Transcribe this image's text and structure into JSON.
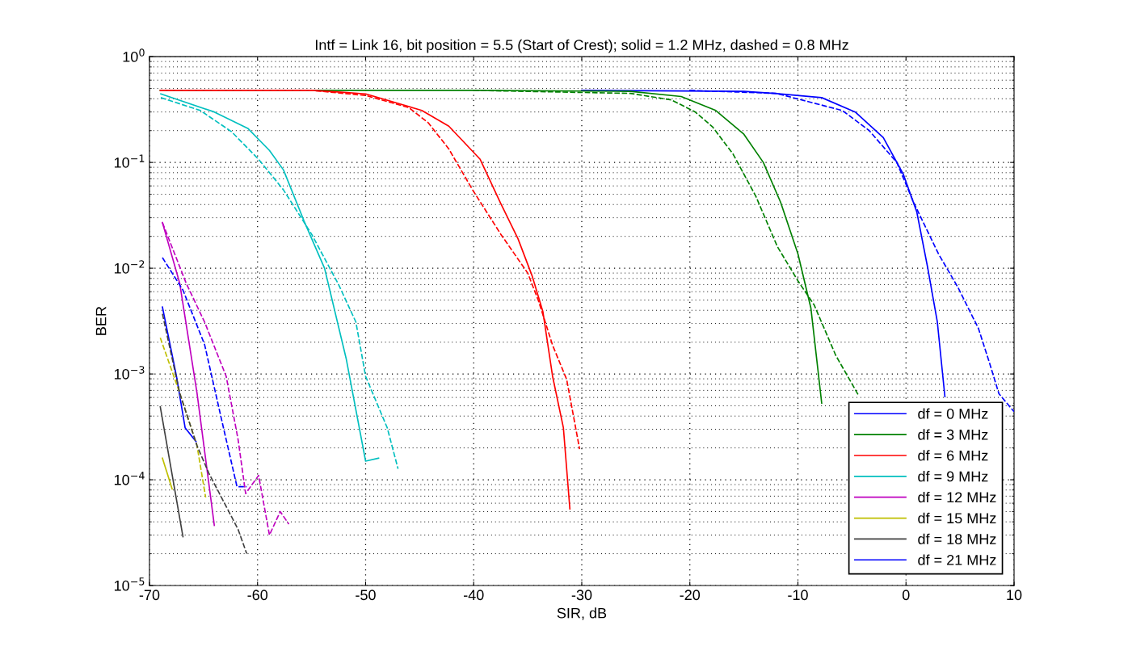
{
  "chart_data": {
    "type": "line",
    "title": "Intf = Link 16, bit position = 5.5 (Start of Crest); solid = 1.2 MHz, dashed = 0.8 MHz",
    "xlabel": "SIR, dB",
    "ylabel": "BER",
    "log": "y",
    "xlim": [
      -70,
      10
    ],
    "xticks": [
      -70,
      -60,
      -50,
      -40,
      -30,
      -20,
      -10,
      0,
      10
    ],
    "ylim": [
      1e-05,
      1
    ],
    "yticks": [
      {
        "value": 1e-05,
        "label": "10$^{−5}$"
      },
      {
        "value": 0.0001,
        "label": "10$^{−4}$"
      },
      {
        "value": 0.001,
        "label": "10$^{−3}$"
      },
      {
        "value": 0.01,
        "label": "10$^{−2}$"
      },
      {
        "value": 0.1,
        "label": "10$^{−1}$"
      },
      {
        "value": 1,
        "label": "10$^{0}$"
      }
    ],
    "grid": true,
    "legend": "bottom right",
    "series": [
      {
        "name": "df = 0 MHz",
        "color": "#0000ff",
        "line_style": "solid",
        "x": [
          -30,
          -15,
          -12.2,
          -7.8,
          -4.7,
          -2.1,
          -0.24,
          1.0,
          2.0,
          2.9,
          3.6
        ],
        "values": [
          0.48,
          0.47,
          0.45,
          0.41,
          0.3,
          0.172,
          0.077,
          0.034,
          0.0102,
          0.0031,
          0.00061
        ]
      },
      {
        "name": "df = 3 MHz",
        "color": "#008000",
        "line_style": "solid",
        "x": [
          -69,
          -40,
          -25.5,
          -20.8,
          -17.6,
          -15.0,
          -13.2,
          -11.6,
          -10.0,
          -8.8,
          -7.8
        ],
        "values": [
          0.48,
          0.48,
          0.47,
          0.42,
          0.31,
          0.185,
          0.1,
          0.042,
          0.0137,
          0.0042,
          0.00053
        ]
      },
      {
        "name": "df = 6 MHz",
        "color": "#ff0000",
        "line_style": "solid",
        "x": [
          -69,
          -55,
          -52,
          -50,
          -44.8,
          -42.3,
          -39.4,
          -37.5,
          -35.9,
          -34.6,
          -33.6,
          -32.7,
          -31.7,
          -31.1
        ],
        "values": [
          0.48,
          0.48,
          0.46,
          0.445,
          0.31,
          0.22,
          0.107,
          0.041,
          0.019,
          0.0085,
          0.0039,
          0.00095,
          0.00031,
          5.3e-05
        ]
      },
      {
        "name": "df = 9 MHz",
        "color": "#00bfbf",
        "line_style": "solid",
        "x": [
          -68.95,
          -64,
          -60.9,
          -58.9,
          -57.6,
          -55.7,
          -53.8,
          -51.8,
          -50.0,
          -48.8
        ],
        "values": [
          0.445,
          0.3,
          0.21,
          0.13,
          0.085,
          0.028,
          0.01,
          0.0014,
          0.00015,
          0.00016
        ]
      },
      {
        "name": "df = 12 MHz",
        "color": "#bf00bf",
        "line_style": "solid",
        "x": [
          -68.8,
          -67.2,
          -65.6,
          -64.0
        ],
        "values": [
          0.027,
          0.0072,
          0.00066,
          3.7e-05
        ]
      },
      {
        "name": "df = 15 MHz",
        "color": "#bfbf00",
        "line_style": "solid",
        "x": [
          -68.8,
          -67.9
        ],
        "values": [
          0.00016,
          8.2e-05
        ]
      },
      {
        "name": "df = 18 MHz",
        "color": "#404040",
        "line_style": "solid",
        "x": [
          -69.0,
          -66.9
        ],
        "values": [
          0.00049,
          2.9e-05
        ]
      },
      {
        "name": "df = 21 MHz",
        "color": "#0000ff",
        "line_style": "solid",
        "x": [
          -68.8,
          -67.5,
          -66.7,
          -65.7
        ],
        "values": [
          0.0043,
          0.00095,
          0.00031,
          0.00023
        ]
      },
      {
        "color": "#0000ff",
        "line_style": "dashed",
        "x": [
          -20,
          -12,
          -5.9,
          -3.4,
          -0.85,
          0.7,
          3.0,
          4.8,
          6.7,
          7.7,
          8.6,
          10
        ],
        "values": [
          0.48,
          0.45,
          0.31,
          0.2,
          0.1,
          0.042,
          0.0137,
          0.0066,
          0.0027,
          0.0013,
          0.00065,
          0.00044
        ]
      },
      {
        "color": "#008000",
        "line_style": "dashed",
        "x": [
          -40,
          -25.5,
          -21.7,
          -19.5,
          -17.9,
          -16.0,
          -13.9,
          -11.9,
          -10.0,
          -8.5,
          -6.5,
          -4.4
        ],
        "values": [
          0.48,
          0.45,
          0.39,
          0.3,
          0.217,
          0.12,
          0.048,
          0.016,
          0.0076,
          0.0045,
          0.0015,
          0.00063
        ]
      },
      {
        "color": "#ff0000",
        "line_style": "dashed",
        "x": [
          -69,
          -55,
          -50,
          -46,
          -44.2,
          -42.3,
          -40.1,
          -37.5,
          -35.0,
          -34.0,
          -32.7,
          -31.4,
          -30.2
        ],
        "values": [
          0.48,
          0.48,
          0.43,
          0.33,
          0.237,
          0.134,
          0.055,
          0.021,
          0.009,
          0.0049,
          0.00187,
          0.00089,
          0.000195
        ]
      },
      {
        "color": "#00bfbf",
        "line_style": "dashed",
        "x": [
          -68.95,
          -65.3,
          -62.4,
          -59.9,
          -57.6,
          -55.0,
          -52.5,
          -50.9,
          -50.0,
          -48.0,
          -47.0
        ],
        "values": [
          0.41,
          0.31,
          0.195,
          0.107,
          0.055,
          0.021,
          0.007,
          0.0031,
          0.00095,
          0.00031,
          0.000127
        ]
      },
      {
        "color": "#bf00bf",
        "line_style": "dashed",
        "x": [
          -68.8,
          -66.6,
          -64.9,
          -62.9,
          -61.8,
          -61.1,
          -59.9,
          -58.9,
          -57.9,
          -57.1
        ],
        "values": [
          0.027,
          0.0072,
          0.0031,
          0.00095,
          0.00024,
          7.4e-05,
          0.00011,
          3e-05,
          5e-05,
          3.8e-05
        ]
      },
      {
        "color": "#bfbf00",
        "line_style": "dashed",
        "x": [
          -69.0,
          -67.2,
          -65.6,
          -64.8
        ],
        "values": [
          0.0022,
          0.00066,
          0.00021,
          6.8e-05
        ]
      },
      {
        "color": "#404040",
        "line_style": "dashed",
        "x": [
          -68.8,
          -67.2,
          -65.6,
          -64.5,
          -61.8,
          -61.0
        ],
        "values": [
          0.0037,
          0.00066,
          0.00021,
          0.000115,
          3.4e-05,
          2e-05
        ]
      },
      {
        "color": "#0000ff",
        "line_style": "dashed",
        "x": [
          -68.8,
          -66.9,
          -64.9,
          -63.3,
          -61.9,
          -61.0
        ],
        "values": [
          0.0126,
          0.0062,
          0.0019,
          0.00036,
          8.6e-05,
          8.6e-05
        ]
      }
    ]
  }
}
